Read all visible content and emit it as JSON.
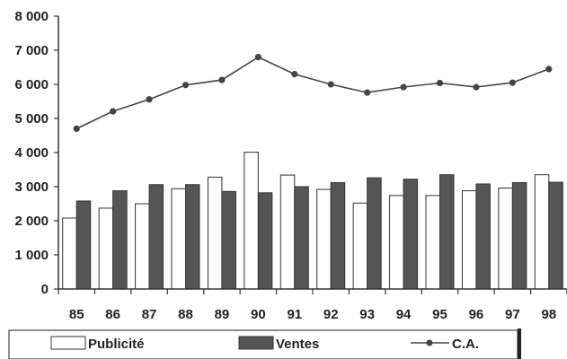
{
  "chart_data": {
    "type": "bar",
    "categories": [
      "85",
      "86",
      "87",
      "88",
      "89",
      "90",
      "91",
      "92",
      "93",
      "94",
      "95",
      "96",
      "97",
      "98"
    ],
    "series": [
      {
        "name": "Publicité",
        "kind": "bar",
        "fill": "#ffffff",
        "values": [
          2080,
          2370,
          2500,
          2940,
          3280,
          4010,
          3340,
          2920,
          2520,
          2740,
          2740,
          2880,
          2960,
          3350
        ]
      },
      {
        "name": "Ventes",
        "kind": "bar",
        "fill": "#555555",
        "values": [
          2580,
          2880,
          3060,
          3060,
          2860,
          2820,
          3000,
          3120,
          3260,
          3220,
          3350,
          3080,
          3120,
          3130
        ]
      },
      {
        "name": "C.A.",
        "kind": "line",
        "color": "#444444",
        "values": [
          4700,
          5210,
          5560,
          5980,
          6130,
          6800,
          6300,
          6000,
          5760,
          5920,
          6040,
          5920,
          6050,
          6450
        ]
      }
    ],
    "yticks": [
      "0",
      "1 000",
      "2 000",
      "3 000",
      "4 000",
      "5 000",
      "6 000",
      "7 000",
      "8 000"
    ],
    "ylim": [
      0,
      8000
    ],
    "grid": false,
    "legend_position": "bottom"
  }
}
